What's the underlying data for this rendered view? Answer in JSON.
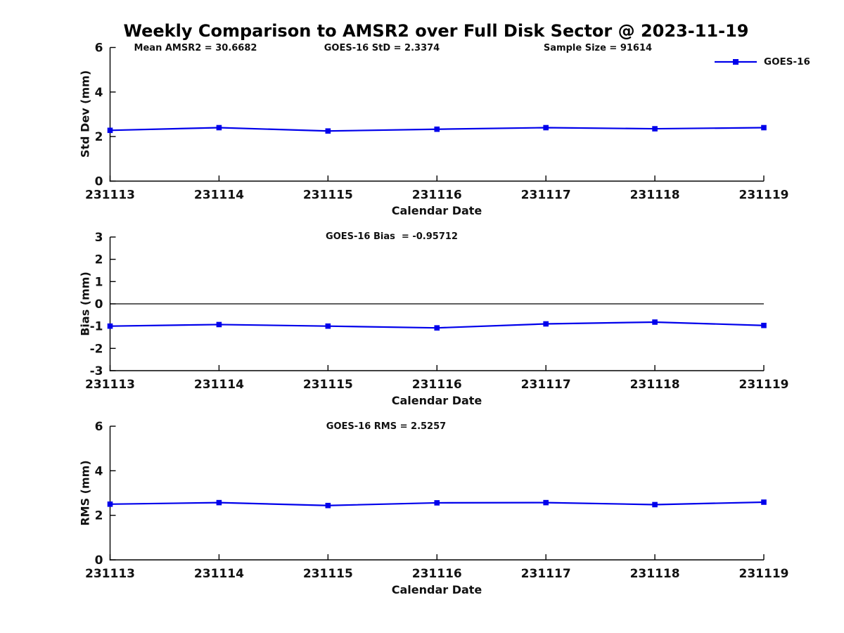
{
  "figure": {
    "title": "Weekly Comparison to AMSR2 over Full Disk Sector @ 2023-11-19",
    "legend": {
      "label": "GOES-16"
    },
    "colors": {
      "series_line": "#0000EB",
      "axis": "#000000",
      "text": "#111111",
      "background": "#ffffff"
    }
  },
  "chart_data": [
    {
      "type": "line",
      "ylabel": "Std Dev (mm)",
      "xlabel": "Calendar Date",
      "ylim": [
        0,
        6
      ],
      "yticks": [
        0,
        2,
        4,
        6
      ],
      "categories": [
        "231113",
        "231114",
        "231115",
        "231116",
        "231117",
        "231118",
        "231119"
      ],
      "annotations": [
        "Mean AMSR2 = 30.6682",
        "GOES-16 StD = 2.3374",
        "Sample Size = 91614"
      ],
      "series": [
        {
          "name": "GOES-16",
          "values": [
            2.28,
            2.4,
            2.25,
            2.33,
            2.4,
            2.35,
            2.4
          ]
        }
      ],
      "zero_line": false,
      "legend_position": "top-right",
      "grid": false
    },
    {
      "type": "line",
      "title": "GOES-16 Bias  = -0.95712",
      "ylabel": "Bias (mm)",
      "xlabel": "Calendar Date",
      "ylim": [
        -3,
        3
      ],
      "yticks": [
        -3,
        -2,
        -1,
        0,
        1,
        2,
        3
      ],
      "categories": [
        "231113",
        "231114",
        "231115",
        "231116",
        "231117",
        "231118",
        "231119"
      ],
      "series": [
        {
          "name": "GOES-16",
          "values": [
            -1.0,
            -0.93,
            -1.0,
            -1.08,
            -0.9,
            -0.82,
            -0.97
          ]
        }
      ],
      "zero_line": true,
      "grid": false
    },
    {
      "type": "line",
      "title": "GOES-16 RMS = 2.5257",
      "ylabel": "RMS (mm)",
      "xlabel": "Calendar Date",
      "ylim": [
        0,
        6
      ],
      "yticks": [
        0,
        2,
        4,
        6
      ],
      "categories": [
        "231113",
        "231114",
        "231115",
        "231116",
        "231117",
        "231118",
        "231119"
      ],
      "series": [
        {
          "name": "GOES-16",
          "values": [
            2.5,
            2.57,
            2.44,
            2.56,
            2.57,
            2.48,
            2.59
          ]
        }
      ],
      "zero_line": false,
      "grid": false
    }
  ]
}
